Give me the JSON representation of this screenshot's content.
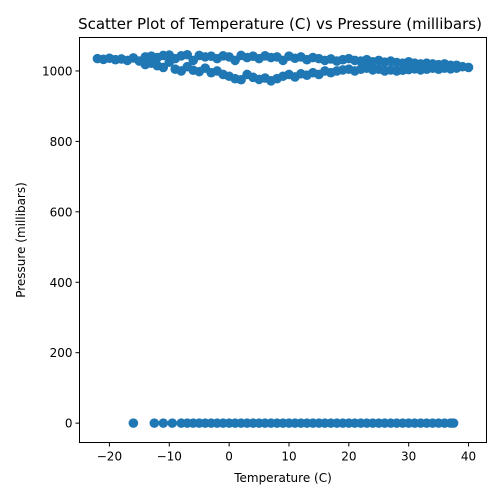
{
  "chart_data": {
    "type": "scatter",
    "title": "Scatter Plot of Temperature (C) vs Pressure (millibars)",
    "xlabel": "Temperature (C)",
    "ylabel": "Pressure (millibars)",
    "xlim": [
      -25,
      43
    ],
    "ylim": [
      -55,
      1095
    ],
    "xticks": [
      -20,
      -10,
      0,
      10,
      20,
      30,
      40
    ],
    "yticks": [
      0,
      200,
      400,
      600,
      800,
      1000
    ],
    "grid": false,
    "color": "#1f77b4",
    "series": [
      {
        "points": [
          [
            -22,
            1035
          ],
          [
            -21,
            1033
          ],
          [
            -20,
            1036
          ],
          [
            -19,
            1032
          ],
          [
            -18,
            1034
          ],
          [
            -17,
            1030
          ],
          [
            -16,
            1037
          ],
          [
            -15,
            1028
          ],
          [
            -14,
            1018
          ],
          [
            -14,
            1040
          ],
          [
            -13,
            1022
          ],
          [
            -13,
            1042
          ],
          [
            -12,
            1015
          ],
          [
            -12,
            1038
          ],
          [
            -11,
            1010
          ],
          [
            -11,
            1044
          ],
          [
            -10,
            1025
          ],
          [
            -10,
            1045
          ],
          [
            -9,
            1005
          ],
          [
            -9,
            1035
          ],
          [
            -8,
            1000
          ],
          [
            -8,
            1043
          ],
          [
            -7,
            1012
          ],
          [
            -7,
            1046
          ],
          [
            -6,
            1002
          ],
          [
            -6,
            1030
          ],
          [
            -5,
            998
          ],
          [
            -5,
            1044
          ],
          [
            -4,
            1008
          ],
          [
            -4,
            1040
          ],
          [
            -3,
            995
          ],
          [
            -3,
            1042
          ],
          [
            -2,
            1000
          ],
          [
            -2,
            1035
          ],
          [
            -1,
            990
          ],
          [
            -1,
            1043
          ],
          [
            0,
            985
          ],
          [
            0,
            1040
          ],
          [
            1,
            978
          ],
          [
            1,
            1030
          ],
          [
            2,
            975
          ],
          [
            2,
            1044
          ],
          [
            3,
            990
          ],
          [
            3,
            1038
          ],
          [
            4,
            982
          ],
          [
            4,
            1042
          ],
          [
            5,
            976
          ],
          [
            5,
            1035
          ],
          [
            6,
            980
          ],
          [
            6,
            1043
          ],
          [
            7,
            972
          ],
          [
            7,
            1038
          ],
          [
            8,
            978
          ],
          [
            8,
            1040
          ],
          [
            9,
            985
          ],
          [
            9,
            1030
          ],
          [
            10,
            990
          ],
          [
            10,
            1042
          ],
          [
            11,
            983
          ],
          [
            11,
            1036
          ],
          [
            12,
            992
          ],
          [
            12,
            1040
          ],
          [
            13,
            988
          ],
          [
            13,
            1032
          ],
          [
            14,
            995
          ],
          [
            14,
            1038
          ],
          [
            15,
            990
          ],
          [
            15,
            1035
          ],
          [
            16,
            1000
          ],
          [
            16,
            1030
          ],
          [
            17,
            995
          ],
          [
            17,
            1034
          ],
          [
            18,
            1000
          ],
          [
            18,
            1028
          ],
          [
            19,
            1003
          ],
          [
            19,
            1032
          ],
          [
            20,
            1005
          ],
          [
            20,
            1035
          ],
          [
            21,
            1000
          ],
          [
            21,
            1030
          ],
          [
            22,
            1005
          ],
          [
            22,
            1028
          ],
          [
            23,
            1008
          ],
          [
            23,
            1032
          ],
          [
            24,
            1003
          ],
          [
            24,
            1026
          ],
          [
            25,
            1005
          ],
          [
            25,
            1030
          ],
          [
            26,
            1000
          ],
          [
            26,
            1025
          ],
          [
            27,
            1003
          ],
          [
            27,
            1028
          ],
          [
            28,
            1000
          ],
          [
            28,
            1024
          ],
          [
            29,
            1002
          ],
          [
            29,
            1022
          ],
          [
            30,
            1004
          ],
          [
            30,
            1026
          ],
          [
            31,
            1006
          ],
          [
            31,
            1022
          ],
          [
            32,
            1003
          ],
          [
            32,
            1020
          ],
          [
            33,
            1005
          ],
          [
            33,
            1022
          ],
          [
            34,
            1008
          ],
          [
            34,
            1020
          ],
          [
            35,
            1005
          ],
          [
            35,
            1018
          ],
          [
            36,
            1008
          ],
          [
            36,
            1020
          ],
          [
            37,
            1006
          ],
          [
            37,
            1016
          ],
          [
            38,
            1008
          ],
          [
            38,
            1016
          ],
          [
            39,
            1012
          ],
          [
            40,
            1010
          ],
          [
            -16,
            0
          ],
          [
            -12.5,
            0
          ],
          [
            -11,
            0
          ],
          [
            -9.5,
            0
          ],
          [
            -8,
            0
          ],
          [
            -7,
            0
          ],
          [
            -6,
            0
          ],
          [
            -5,
            0
          ],
          [
            -4,
            0
          ],
          [
            -3,
            0
          ],
          [
            -2,
            0
          ],
          [
            -1,
            0
          ],
          [
            0,
            0
          ],
          [
            1,
            0
          ],
          [
            2,
            0
          ],
          [
            3,
            0
          ],
          [
            4,
            0
          ],
          [
            5,
            0
          ],
          [
            6,
            0
          ],
          [
            7,
            0
          ],
          [
            8,
            0
          ],
          [
            9,
            0
          ],
          [
            10,
            0
          ],
          [
            11,
            0
          ],
          [
            12,
            0
          ],
          [
            13,
            0
          ],
          [
            14,
            0
          ],
          [
            15,
            0
          ],
          [
            16,
            0
          ],
          [
            17,
            0
          ],
          [
            18,
            0
          ],
          [
            19,
            0
          ],
          [
            20,
            0
          ],
          [
            21,
            0
          ],
          [
            22,
            0
          ],
          [
            23,
            0
          ],
          [
            24,
            0
          ],
          [
            25,
            0
          ],
          [
            26,
            0
          ],
          [
            27,
            0
          ],
          [
            28,
            0
          ],
          [
            29,
            0
          ],
          [
            30,
            0
          ],
          [
            31,
            0
          ],
          [
            32,
            0
          ],
          [
            33,
            0
          ],
          [
            34,
            0
          ],
          [
            35,
            0
          ],
          [
            36,
            0
          ],
          [
            37,
            0
          ],
          [
            37.5,
            0
          ]
        ]
      }
    ]
  }
}
